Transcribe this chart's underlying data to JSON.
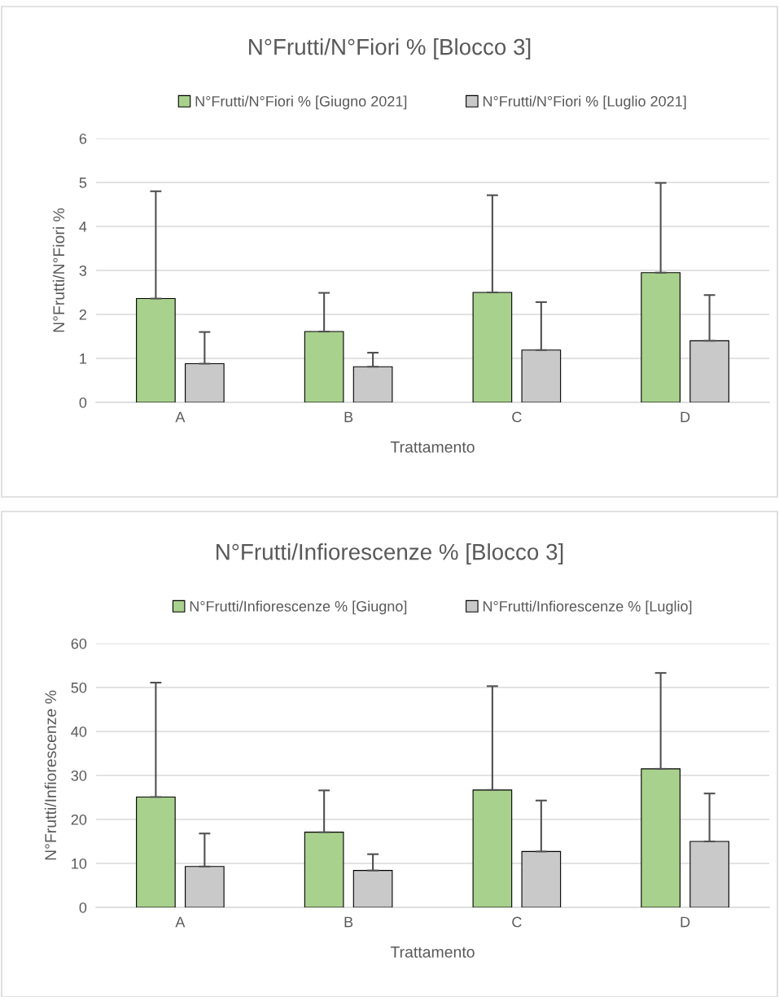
{
  "chart_data": [
    {
      "type": "bar",
      "title": "N°Frutti/N°Fiori % [Blocco 3]",
      "xlabel": "Trattamento",
      "ylabel": "N°Frutti/N°Fiori %",
      "categories": [
        "A",
        "B",
        "C",
        "D"
      ],
      "series": [
        {
          "name": "N°Frutti/N°Fiori % [Giugno 2021]",
          "color": "#a9d18e",
          "values": [
            2.36,
            1.61,
            2.5,
            2.95
          ],
          "errors": [
            [
              2.36,
              4.8
            ],
            [
              1.61,
              2.49
            ],
            [
              2.5,
              4.71
            ],
            [
              2.95,
              4.99
            ]
          ]
        },
        {
          "name": "N°Frutti/N°Fiori % [Luglio 2021]",
          "color": "#c9c9c9",
          "values": [
            0.88,
            0.81,
            1.19,
            1.4
          ],
          "errors": [
            [
              0.88,
              1.6
            ],
            [
              0.81,
              1.13
            ],
            [
              1.19,
              2.28
            ],
            [
              1.4,
              2.44
            ]
          ]
        }
      ],
      "ylim": [
        0,
        6
      ],
      "yticks": [
        0,
        1,
        2,
        3,
        4,
        5,
        6
      ],
      "grid": "y",
      "legend": "top"
    },
    {
      "type": "bar",
      "title": "N°Frutti/Infiorescenze % [Blocco 3]",
      "xlabel": "Trattamento",
      "ylabel": "N°Frutti/Infiorescenze %",
      "categories": [
        "A",
        "B",
        "C",
        "D"
      ],
      "series": [
        {
          "name": "N°Frutti/Infiorescenze % [Giugno]",
          "color": "#a9d18e",
          "values": [
            25.1,
            17.1,
            26.7,
            31.5
          ],
          "errors": [
            [
              25.1,
              51.1
            ],
            [
              17.1,
              26.6
            ],
            [
              26.7,
              50.3
            ],
            [
              31.5,
              53.3
            ]
          ]
        },
        {
          "name": "N°Frutti/Infiorescenze % [Luglio]",
          "color": "#c9c9c9",
          "values": [
            9.3,
            8.4,
            12.7,
            15.0
          ],
          "errors": [
            [
              9.3,
              16.8
            ],
            [
              8.4,
              12.1
            ],
            [
              12.7,
              24.3
            ],
            [
              15.0,
              25.9
            ]
          ]
        }
      ],
      "ylim": [
        0,
        60
      ],
      "yticks": [
        0,
        10,
        20,
        30,
        40,
        50,
        60
      ],
      "grid": "y",
      "legend": "top"
    }
  ]
}
